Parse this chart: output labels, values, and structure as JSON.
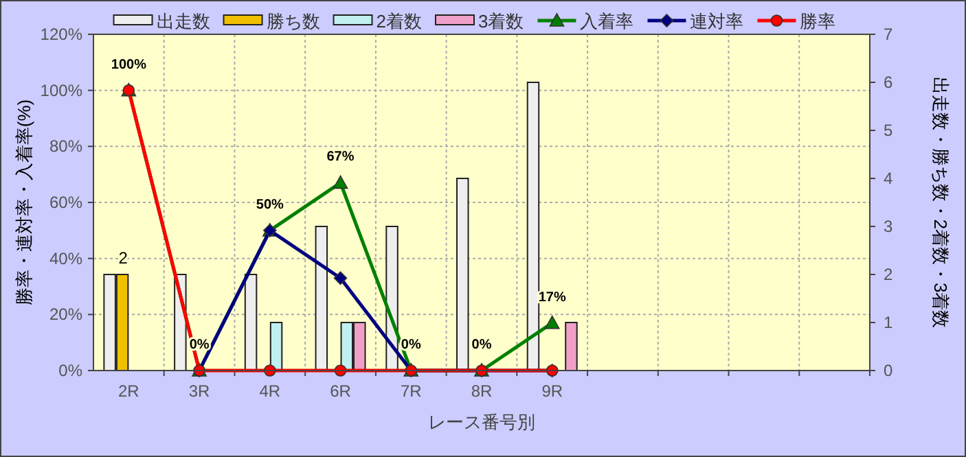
{
  "chart_data": {
    "type": "bar",
    "xlabel": "レース番号別",
    "ylabel": "勝率・連対率・入着率(%)",
    "y2label": "出走数・勝ち数・2着数・3着数",
    "categories": [
      "2R",
      "3R",
      "4R",
      "6R",
      "7R",
      "8R",
      "9R",
      null,
      null,
      null,
      null
    ],
    "ylim": [
      0,
      120
    ],
    "yticks": [
      {
        "value": 0,
        "label": "0%"
      },
      {
        "value": 20,
        "label": "20%"
      },
      {
        "value": 40,
        "label": "40%"
      },
      {
        "value": 60,
        "label": "60%"
      },
      {
        "value": 80,
        "label": "80%"
      },
      {
        "value": 100,
        "label": "100%"
      },
      {
        "value": 120,
        "label": "120%"
      }
    ],
    "y2lim": [
      0,
      7
    ],
    "y2ticks": [
      0,
      1,
      2,
      3,
      4,
      5,
      6,
      7
    ],
    "grid": true,
    "legend": "top",
    "series": [
      {
        "name": "出走数",
        "axis": "y2",
        "color": "#eeeeee",
        "values": [
          2,
          2,
          2,
          3,
          3,
          4,
          6,
          null,
          null,
          null,
          null
        ]
      },
      {
        "name": "勝ち数",
        "axis": "y2",
        "color": "#f0c000",
        "values": [
          2,
          0,
          0,
          0,
          0,
          0,
          0,
          null,
          null,
          null,
          null
        ],
        "value_labels": [
          "2",
          null,
          null,
          null,
          null,
          null,
          null,
          null,
          null,
          null,
          null
        ]
      },
      {
        "name": "2着数",
        "axis": "y2",
        "color": "#c0f0f0",
        "values": [
          0,
          0,
          1,
          1,
          0,
          0,
          0,
          null,
          null,
          null,
          null
        ]
      },
      {
        "name": "3着数",
        "axis": "y2",
        "color": "#f0a0c8",
        "values": [
          0,
          0,
          0,
          1,
          0,
          0,
          1,
          null,
          null,
          null,
          null
        ]
      },
      {
        "name": "入着率",
        "type": "line",
        "marker": "triangle",
        "color": "#008000",
        "values": [
          100,
          0,
          50,
          67,
          0,
          0,
          17,
          null,
          null,
          null,
          null
        ],
        "value_labels": [
          "100%",
          "0%",
          "50%",
          "67%",
          "0%",
          "0%",
          "17%",
          null,
          null,
          null,
          null
        ]
      },
      {
        "name": "連対率",
        "type": "line",
        "marker": "diamond",
        "color": "#000080",
        "values": [
          null,
          0,
          50,
          33,
          0,
          0,
          0,
          null,
          null,
          null,
          null
        ]
      },
      {
        "name": "勝率",
        "type": "line",
        "marker": "circle",
        "color": "#ff0000",
        "values": [
          100,
          0,
          0,
          0,
          0,
          0,
          0,
          null,
          null,
          null,
          null
        ]
      }
    ]
  }
}
